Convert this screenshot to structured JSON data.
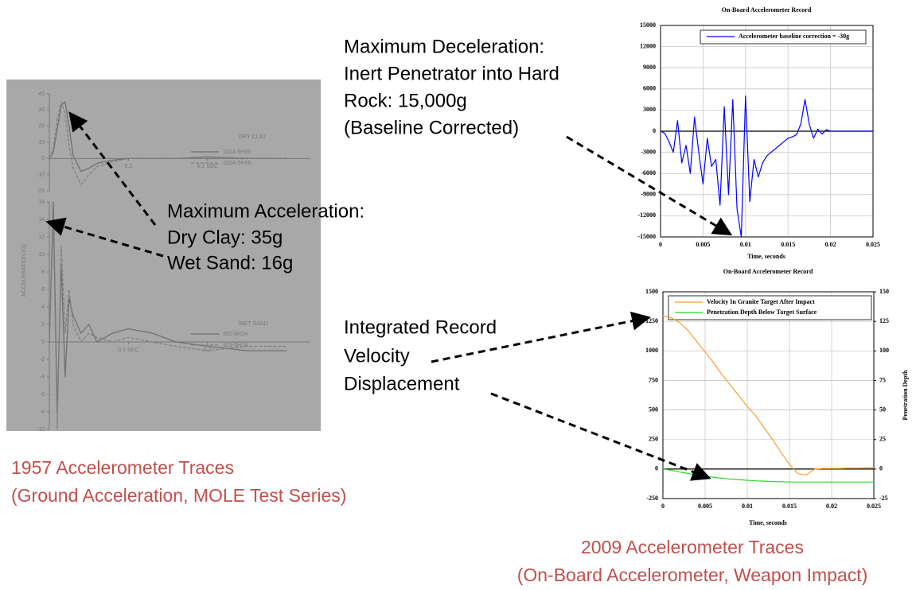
{
  "annotations": {
    "deceleration": [
      "Maximum Deceleration:",
      "Inert Penetrator into Hard",
      "Rock: 15,000g",
      "(Baseline Corrected)"
    ],
    "acceleration": [
      "Maximum Acceleration:",
      "Dry  Clay: 35g",
      "Wet Sand: 16g"
    ],
    "integrated": [
      "Integrated Record",
      "Velocity",
      "Displacement"
    ]
  },
  "captions": {
    "left": [
      "1957 Accelerometer Traces",
      "(Ground Acceleration, MOLE Test Series)"
    ],
    "right": [
      "2009 Accelerometer Traces",
      "(On-Board  Accelerometer, Weapon Impact)"
    ]
  },
  "chart_data": [
    {
      "type": "line",
      "title": "DRY CLAY",
      "x": [
        0,
        0.005,
        0.01,
        0.015,
        0.02,
        0.025,
        0.03,
        0.04,
        0.05,
        0.06,
        0.08,
        0.1,
        0.13,
        0.16,
        0.2,
        0.25,
        0.3
      ],
      "series": [
        {
          "name": "102A-5H00",
          "color": "#707070",
          "dash": false,
          "values": [
            0,
            4,
            18,
            33,
            35,
            20,
            2,
            -8,
            -6,
            -3,
            -1,
            0,
            0,
            0,
            1,
            0,
            0
          ]
        },
        {
          "name": "102A-5H56",
          "color": "#808080",
          "dash": true,
          "values": [
            0,
            6,
            24,
            35,
            28,
            8,
            -6,
            -16,
            -10,
            -5,
            -2,
            0,
            0,
            0,
            1,
            0,
            0
          ]
        }
      ],
      "xlim": [
        0,
        0.33
      ],
      "xticks": [
        0.1,
        {
          "value": 0.2,
          "label": "0.2 SEC"
        }
      ],
      "ylim": [
        -20,
        40
      ],
      "yticks": [
        -20,
        -10,
        0,
        10,
        20,
        30,
        40
      ],
      "grid": false
    },
    {
      "type": "line",
      "title": "WET SAND",
      "ylabel": "ACCELERATION (G)",
      "x": [
        0,
        0.005,
        0.01,
        0.015,
        0.02,
        0.025,
        0.03,
        0.04,
        0.05,
        0.06,
        0.08,
        0.1,
        0.13,
        0.16,
        0.2,
        0.25,
        0.3
      ],
      "series": [
        {
          "name": "302-5H2A",
          "color": "#707070",
          "dash": false,
          "values": [
            0,
            16,
            -8,
            9,
            -4,
            5,
            3,
            1,
            2,
            0,
            1,
            1.5,
            1,
            0,
            -0.5,
            -1,
            -1
          ]
        },
        {
          "name": "303-5H2A",
          "color": "#808080",
          "dash": true,
          "values": [
            0,
            14,
            -10,
            11,
            1,
            6,
            2,
            0,
            1,
            0.5,
            0,
            0.5,
            0,
            -0.5,
            -1,
            -0.5,
            -0.5
          ]
        }
      ],
      "xlim": [
        0,
        0.33
      ],
      "xticks": [
        {
          "value": 0.1,
          "label": "0.1 SEC"
        },
        0.2
      ],
      "ylim": [
        -10,
        16
      ],
      "yticks": [
        -10,
        -8,
        -6,
        -4,
        -2,
        0,
        2,
        4,
        6,
        8,
        10,
        12,
        14,
        16
      ],
      "grid": false
    },
    {
      "type": "line",
      "title": "On-Board Accelerometer Record",
      "xlabel": "Time, seconds",
      "x": [
        0,
        0.0005,
        0.001,
        0.0015,
        0.002,
        0.0025,
        0.003,
        0.0035,
        0.004,
        0.0045,
        0.005,
        0.0055,
        0.006,
        0.0065,
        0.007,
        0.0075,
        0.008,
        0.0085,
        0.009,
        0.0095,
        0.01,
        0.0105,
        0.011,
        0.0115,
        0.012,
        0.0125,
        0.013,
        0.0135,
        0.014,
        0.0145,
        0.015,
        0.0155,
        0.016,
        0.0165,
        0.017,
        0.0175,
        0.018,
        0.0185,
        0.019,
        0.0195,
        0.02,
        0.0205,
        0.021,
        0.0215,
        0.022,
        0.0225,
        0.023,
        0.0235,
        0.024,
        0.0245,
        0.025
      ],
      "series": [
        {
          "name": "Accelerometer baseline correction = -30g",
          "color": "#0000ff",
          "dash": false,
          "values": [
            0,
            -300,
            -1500,
            -3000,
            1500,
            -4500,
            -2000,
            -6000,
            2000,
            -3000,
            -7500,
            -1000,
            -5000,
            -4000,
            -10500,
            3500,
            -9000,
            4500,
            -11000,
            -15000,
            5000,
            -10000,
            -4000,
            -6500,
            -4500,
            -3500,
            -3000,
            -2500,
            -2000,
            -1500,
            -1000,
            -800,
            -500,
            1000,
            4500,
            1000,
            -1000,
            300,
            -400,
            200,
            0,
            0,
            0,
            0,
            0,
            0,
            0,
            0,
            0,
            0,
            0
          ]
        }
      ],
      "xlim": [
        0,
        0.025
      ],
      "xticks": [
        0,
        0.005,
        0.01,
        0.015,
        0.02,
        0.025
      ],
      "ylim": [
        -15000,
        15000
      ],
      "yticks": [
        -15000,
        -12000,
        -9000,
        -6000,
        -3000,
        0,
        3000,
        6000,
        9000,
        12000,
        15000
      ],
      "grid": true
    },
    {
      "type": "line",
      "title": "On-Board Accelerometer Record",
      "xlabel": "Time, seconds",
      "y2label": "Penetration Depth",
      "x": [
        0,
        0.001,
        0.002,
        0.003,
        0.004,
        0.005,
        0.006,
        0.007,
        0.008,
        0.009,
        0.01,
        0.011,
        0.012,
        0.013,
        0.014,
        0.015,
        0.016,
        0.017,
        0.018,
        0.019,
        0.02,
        0.021,
        0.022,
        0.023,
        0.024,
        0.025
      ],
      "series": [
        {
          "name": "Velocity In Granite Target After Impact",
          "color": "#f5a030",
          "dash": false,
          "values": [
            1300,
            1280,
            1240,
            1170,
            1080,
            990,
            900,
            800,
            710,
            620,
            530,
            450,
            350,
            250,
            140,
            40,
            -40,
            -50,
            0,
            5,
            5,
            5,
            8,
            8,
            10,
            10
          ]
        },
        {
          "name": "Penetration Depth Below Target Surface",
          "color": "#22dd22",
          "dash": false,
          "axis": "y2",
          "values": [
            0,
            -1,
            -2.5,
            -3.8,
            -5,
            -6,
            -7,
            -7.8,
            -8.5,
            -9,
            -9.5,
            -10,
            -10.3,
            -10.6,
            -10.8,
            -11,
            -11,
            -11,
            -11,
            -11,
            -11,
            -11,
            -11,
            -11,
            -11,
            -11
          ]
        }
      ],
      "xlim": [
        0,
        0.025
      ],
      "xticks": [
        0,
        0.005,
        0.01,
        0.015,
        0.02,
        0.025
      ],
      "ylim": [
        -250,
        1500
      ],
      "yticks": [
        -250,
        0,
        250,
        500,
        750,
        1000,
        1250,
        1500
      ],
      "y2lim": [
        -25,
        150
      ],
      "y2ticks": [
        -25,
        0,
        25,
        50,
        75,
        100,
        125,
        150
      ],
      "grid": true
    }
  ]
}
